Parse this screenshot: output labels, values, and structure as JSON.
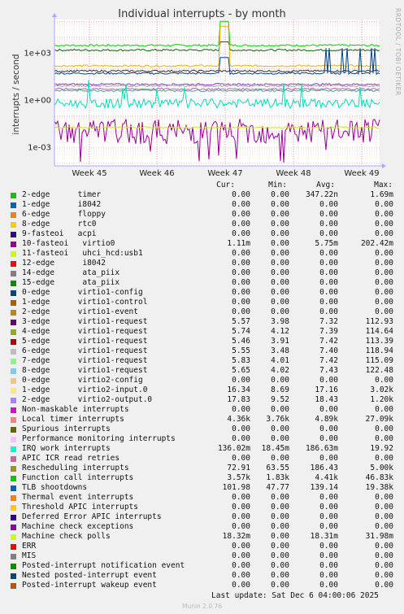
{
  "title": "Individual interrupts - by month",
  "ylabel": "interrupts / second",
  "side_text": "RRDTOOL / TOBI OETIKER",
  "footer_text": "Last update: Sat Dec  6 04:00:06 2025",
  "munin_version": "Munin 2.0.76",
  "columns": {
    "cur": "Cur:",
    "min": "Min:",
    "avg": "Avg:",
    "max": "Max:"
  },
  "chart_data": {
    "type": "line",
    "yscale": "log",
    "y_ticks": [
      "1e+03",
      "1e+00",
      "1e-03"
    ],
    "x_ticks": [
      "Week 45",
      "Week 46",
      "Week 47",
      "Week 48",
      "Week 49"
    ],
    "series": [
      {
        "name": "timer",
        "color": "#00cc00",
        "level": 3000,
        "spike": 100000
      },
      {
        "name": "virtio1-request",
        "color": "#006600",
        "level": 1500,
        "spike": 5000
      },
      {
        "name": "virtio2-input.0",
        "color": "#f0b000",
        "level": 150,
        "spike": 50000
      },
      {
        "name": "Posted-interrupt wakeup event",
        "color": "#004488",
        "level": 50,
        "spike": 500
      },
      {
        "name": "Rescheduling interrupts",
        "color": "#333333",
        "level": 70
      },
      {
        "name": "TLB shootdowns",
        "color": "#8844cc",
        "level": 10
      },
      {
        "name": "Local timer interrupts",
        "color": "#c060c0",
        "level": 5
      },
      {
        "name": "virtio1-request 2",
        "color": "#aaaaaa",
        "level": 8
      },
      {
        "name": "Function call interrupts",
        "color": "#44aa88",
        "level": 4
      },
      {
        "name": "IRQ work interrupts",
        "color": "#00e0c0",
        "level": 0.6
      },
      {
        "name": "virtio0",
        "color": "#990099",
        "level": 0.01
      },
      {
        "name": "Machine check polls",
        "color": "#ccee00",
        "level": 0.018
      }
    ]
  },
  "legend": [
    {
      "color": "#00cc00",
      "name": "2-edge      timer",
      "cur": "0.00",
      "min": "0.00",
      "avg": "347.22n",
      "max": "1.69m"
    },
    {
      "color": "#0066b3",
      "name": "1-edge      i8042",
      "cur": "0.00",
      "min": "0.00",
      "avg": "0.00",
      "max": "0.00"
    },
    {
      "color": "#ff8000",
      "name": "6-edge      floppy",
      "cur": "0.00",
      "min": "0.00",
      "avg": "0.00",
      "max": "0.00"
    },
    {
      "color": "#ffcc00",
      "name": "8-edge      rtc0",
      "cur": "0.00",
      "min": "0.00",
      "avg": "0.00",
      "max": "0.00"
    },
    {
      "color": "#330099",
      "name": "9-fasteoi   acpi",
      "cur": "0.00",
      "min": "0.00",
      "avg": "0.00",
      "max": "0.00"
    },
    {
      "color": "#990099",
      "name": "10-fasteoi   virtio0",
      "cur": "1.11m",
      "min": "0.00",
      "avg": "5.75m",
      "max": "202.42m"
    },
    {
      "color": "#ccff00",
      "name": "11-fasteoi   uhci_hcd:usb1",
      "cur": "0.00",
      "min": "0.00",
      "avg": "0.00",
      "max": "0.00"
    },
    {
      "color": "#ff0000",
      "name": "12-edge      i8042",
      "cur": "0.00",
      "min": "0.00",
      "avg": "0.00",
      "max": "0.00"
    },
    {
      "color": "#808080",
      "name": "14-edge      ata_piix",
      "cur": "0.00",
      "min": "0.00",
      "avg": "0.00",
      "max": "0.00"
    },
    {
      "color": "#008f00",
      "name": "15-edge      ata_piix",
      "cur": "0.00",
      "min": "0.00",
      "avg": "0.00",
      "max": "0.00"
    },
    {
      "color": "#00487d",
      "name": "0-edge      virtio1-config",
      "cur": "0.00",
      "min": "0.00",
      "avg": "0.00",
      "max": "0.00"
    },
    {
      "color": "#b35a00",
      "name": "1-edge      virtio1-control",
      "cur": "0.00",
      "min": "0.00",
      "avg": "0.00",
      "max": "0.00"
    },
    {
      "color": "#b38f00",
      "name": "2-edge      virtio1-event",
      "cur": "0.00",
      "min": "0.00",
      "avg": "0.00",
      "max": "0.00"
    },
    {
      "color": "#6b006b",
      "name": "3-edge      virtio1-request",
      "cur": "5.57",
      "min": "3.98",
      "avg": "7.32",
      "max": "112.93"
    },
    {
      "color": "#8fb300",
      "name": "4-edge      virtio1-request",
      "cur": "5.74",
      "min": "4.12",
      "avg": "7.39",
      "max": "114.64"
    },
    {
      "color": "#b30000",
      "name": "5-edge      virtio1-request",
      "cur": "5.46",
      "min": "3.91",
      "avg": "7.42",
      "max": "113.39"
    },
    {
      "color": "#bebebe",
      "name": "6-edge      virtio1-request",
      "cur": "5.55",
      "min": "3.48",
      "avg": "7.40",
      "max": "118.94"
    },
    {
      "color": "#80ff80",
      "name": "7-edge      virtio1-request",
      "cur": "5.83",
      "min": "4.01",
      "avg": "7.42",
      "max": "115.09"
    },
    {
      "color": "#80c9ff",
      "name": "8-edge      virtio1-request",
      "cur": "5.65",
      "min": "4.02",
      "avg": "7.43",
      "max": "122.48"
    },
    {
      "color": "#ffc080",
      "name": "0-edge      virtio2-config",
      "cur": "0.00",
      "min": "0.00",
      "avg": "0.00",
      "max": "0.00"
    },
    {
      "color": "#ffe680",
      "name": "1-edge      virtio2-input.0",
      "cur": "16.34",
      "min": "8.69",
      "avg": "17.16",
      "max": "3.02k"
    },
    {
      "color": "#aa80ff",
      "name": "2-edge      virtio2-output.0",
      "cur": "17.83",
      "min": "9.52",
      "avg": "18.43",
      "max": "1.20k"
    },
    {
      "color": "#ee00cc",
      "name": "Non-maskable interrupts",
      "cur": "0.00",
      "min": "0.00",
      "avg": "0.00",
      "max": "0.00"
    },
    {
      "color": "#ff8080",
      "name": "Local timer interrupts",
      "cur": "4.36k",
      "min": "3.76k",
      "avg": "4.89k",
      "max": "27.09k"
    },
    {
      "color": "#666600",
      "name": "Spurious interrupts",
      "cur": "0.00",
      "min": "0.00",
      "avg": "0.00",
      "max": "0.00"
    },
    {
      "color": "#ffbfff",
      "name": "Performance monitoring interrupts",
      "cur": "0.00",
      "min": "0.00",
      "avg": "0.00",
      "max": "0.00"
    },
    {
      "color": "#00ffcc",
      "name": "IRQ work interrupts",
      "cur": "136.02m",
      "min": "18.45m",
      "avg": "186.63m",
      "max": "19.92"
    },
    {
      "color": "#cc6699",
      "name": "APIC ICR read retries",
      "cur": "0.00",
      "min": "0.00",
      "avg": "0.00",
      "max": "0.00"
    },
    {
      "color": "#999900",
      "name": "Rescheduling interrupts",
      "cur": "72.91",
      "min": "63.55",
      "avg": "186.43",
      "max": "5.00k"
    },
    {
      "color": "#00cc00",
      "name": "Function call interrupts",
      "cur": "3.57k",
      "min": "1.83k",
      "avg": "4.41k",
      "max": "46.83k"
    },
    {
      "color": "#0066b3",
      "name": "TLB shootdowns",
      "cur": "101.98",
      "min": "47.77",
      "avg": "139.14",
      "max": "19.38k"
    },
    {
      "color": "#ff8000",
      "name": "Thermal event interrupts",
      "cur": "0.00",
      "min": "0.00",
      "avg": "0.00",
      "max": "0.00"
    },
    {
      "color": "#ffcc00",
      "name": "Threshold APIC interrupts",
      "cur": "0.00",
      "min": "0.00",
      "avg": "0.00",
      "max": "0.00"
    },
    {
      "color": "#330099",
      "name": "Deferred Error APIC interrupts",
      "cur": "0.00",
      "min": "0.00",
      "avg": "0.00",
      "max": "0.00"
    },
    {
      "color": "#990099",
      "name": "Machine check exceptions",
      "cur": "0.00",
      "min": "0.00",
      "avg": "0.00",
      "max": "0.00"
    },
    {
      "color": "#ccff00",
      "name": "Machine check polls",
      "cur": "18.32m",
      "min": "0.00",
      "avg": "18.31m",
      "max": "31.98m"
    },
    {
      "color": "#ff0000",
      "name": "ERR",
      "cur": "0.00",
      "min": "0.00",
      "avg": "0.00",
      "max": "0.00"
    },
    {
      "color": "#808080",
      "name": "MIS",
      "cur": "0.00",
      "min": "0.00",
      "avg": "0.00",
      "max": "0.00"
    },
    {
      "color": "#008f00",
      "name": "Posted-interrupt notification event",
      "cur": "0.00",
      "min": "0.00",
      "avg": "0.00",
      "max": "0.00"
    },
    {
      "color": "#00487d",
      "name": "Nested posted-interrupt event",
      "cur": "0.00",
      "min": "0.00",
      "avg": "0.00",
      "max": "0.00"
    },
    {
      "color": "#b35a00",
      "name": "Posted-interrupt wakeup event",
      "cur": "0.00",
      "min": "0.00",
      "avg": "0.00",
      "max": "0.00"
    }
  ]
}
